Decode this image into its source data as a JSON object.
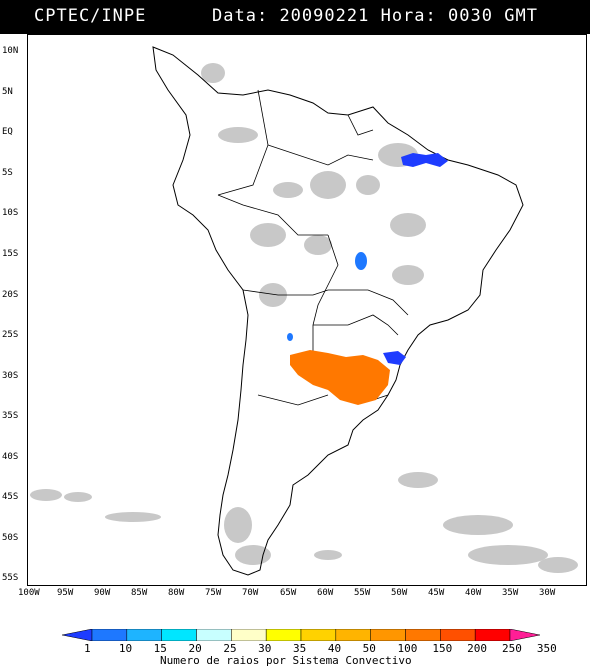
{
  "header": {
    "source": "CPTEC/INPE",
    "data_label": "Data:",
    "date": "20090221",
    "hora_label": "Hora:",
    "time": "0030",
    "tz": "GMT"
  },
  "map": {
    "lat_labels": [
      "10N",
      "5N",
      "EQ",
      "5S",
      "10S",
      "15S",
      "20S",
      "25S",
      "30S",
      "35S",
      "40S",
      "45S",
      "50S",
      "55S"
    ],
    "lon_labels": [
      "100W",
      "95W",
      "90W",
      "85W",
      "80W",
      "75W",
      "70W",
      "65W",
      "60W",
      "55W",
      "50W",
      "45W",
      "40W",
      "35W",
      "30W"
    ],
    "colors": {
      "land_border": "#000000",
      "cloud_gray": "#c8c8c8",
      "lightning_blue": "#1e3cff",
      "lightning_orange": "#ff7800",
      "lightning_light_blue": "#1e78ff"
    }
  },
  "colorbar": {
    "ticks": [
      "1",
      "10",
      "15",
      "20",
      "25",
      "30",
      "35",
      "40",
      "50",
      "100",
      "150",
      "200",
      "250",
      "350"
    ],
    "colors": [
      "#1e3cff",
      "#1e78ff",
      "#1eb4ff",
      "#00e6ff",
      "#c8ffff",
      "#ffffc8",
      "#ffff00",
      "#ffd200",
      "#ffb400",
      "#ff9600",
      "#ff7800",
      "#ff5000",
      "#ff0000",
      "#ff1e96"
    ],
    "title": "Numero de raios por Sistema Convectivo"
  }
}
